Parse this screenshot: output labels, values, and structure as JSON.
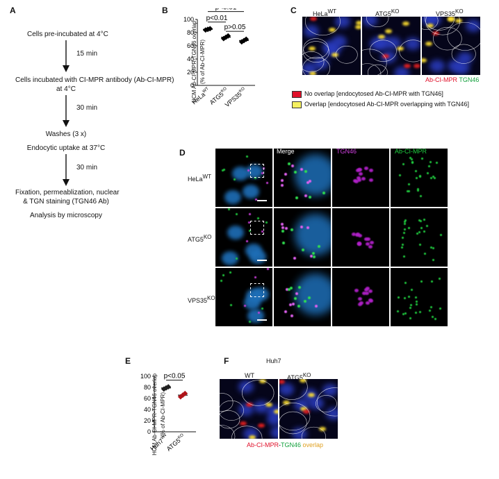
{
  "panel_A": {
    "label": "A",
    "steps": [
      "Cells pre-incubated at 4°C",
      "Cells incubated with CI-MPR antibody (Ab-CI-MPR)",
      "at 4°C",
      "Washes (3 x)",
      "Endocytic uptake at 37°C",
      "Fixation, permeablization, nuclear",
      "& TGN staining (TGN46 Ab)",
      "Analysis by microscopy"
    ],
    "intervals": [
      "15 min",
      "30 min",
      "30 min"
    ]
  },
  "panel_B": {
    "label": "B",
    "ylabel_line1": "HCM Ab-CI-MPR-TGN46 overlap",
    "ylabel_line2": "(% of Ab-CI-MPR)",
    "significance": [
      "p<0.01",
      "p<0.01",
      "p>0.05"
    ]
  },
  "panel_C": {
    "label": "C",
    "columns": [
      "HeLa",
      "ATG5",
      "VPS35"
    ],
    "superscripts": [
      "WT",
      "KO",
      "KO"
    ],
    "channel_red": "Ab-CI-MPR",
    "channel_green": "TGN46",
    "legend": [
      {
        "text": "No overlap [endocytosed Ab-CI-MPR with TGN46]",
        "color": "#e0102a"
      },
      {
        "text": "Overlap [endocytosed Ab-CI-MPR overlapping with TGN46]",
        "color": "#f5f060"
      }
    ]
  },
  "panel_D": {
    "label": "D",
    "column_headers": [
      "Merge",
      "TGN46",
      "Ab-CI-MPR"
    ],
    "row_labels": [
      "HeLa",
      "ATG5",
      "VPS35"
    ],
    "row_superscripts": [
      "WT",
      "KO",
      "KO"
    ]
  },
  "panel_E": {
    "label": "E",
    "ylabel_line1": "HCM Ab-CI-MPR-TGN46 overlap",
    "ylabel_line2": "(% of Ab-CI-MPR)",
    "significance": [
      "p<0.05"
    ]
  },
  "panel_F": {
    "label": "F",
    "title": "Huh7",
    "columns": [
      "WT",
      "ATG5"
    ],
    "column_superscripts": [
      "",
      "KO"
    ],
    "caption_red": "Ab-CI-MPR",
    "caption_sep": "-",
    "caption_green": "TGN46",
    "caption_overlap": "overlap"
  },
  "chart_data": [
    {
      "type": "scatter",
      "panel": "B",
      "categories": [
        "HeLaWT",
        "ATG5KO",
        "VPS35KO"
      ],
      "category_labels": [
        [
          "HeLa",
          "WT"
        ],
        [
          "ATG5",
          "KO"
        ],
        [
          "VPS35",
          "KO"
        ]
      ],
      "means": [
        85,
        73,
        68
      ],
      "points": [
        [
          84,
          85,
          86
        ],
        [
          71,
          73,
          75
        ],
        [
          66,
          68,
          70
        ]
      ],
      "ylim": [
        0,
        100
      ],
      "yticks": [
        0,
        20,
        40,
        60,
        80,
        100
      ],
      "marker_color": "#000000"
    },
    {
      "type": "scatter",
      "panel": "E",
      "categories": [
        "Huh7WT",
        "ATG5KO"
      ],
      "category_labels": [
        [
          "Huh7",
          "WT"
        ],
        [
          "ATG5",
          "KO"
        ]
      ],
      "means": [
        79,
        66
      ],
      "points": [
        [
          77,
          79,
          81
        ],
        [
          63,
          66,
          69
        ]
      ],
      "ylim": [
        0,
        100
      ],
      "yticks": [
        0,
        20,
        40,
        60,
        80,
        100
      ],
      "marker_colors": [
        "#222222",
        "#b0141a"
      ]
    }
  ]
}
